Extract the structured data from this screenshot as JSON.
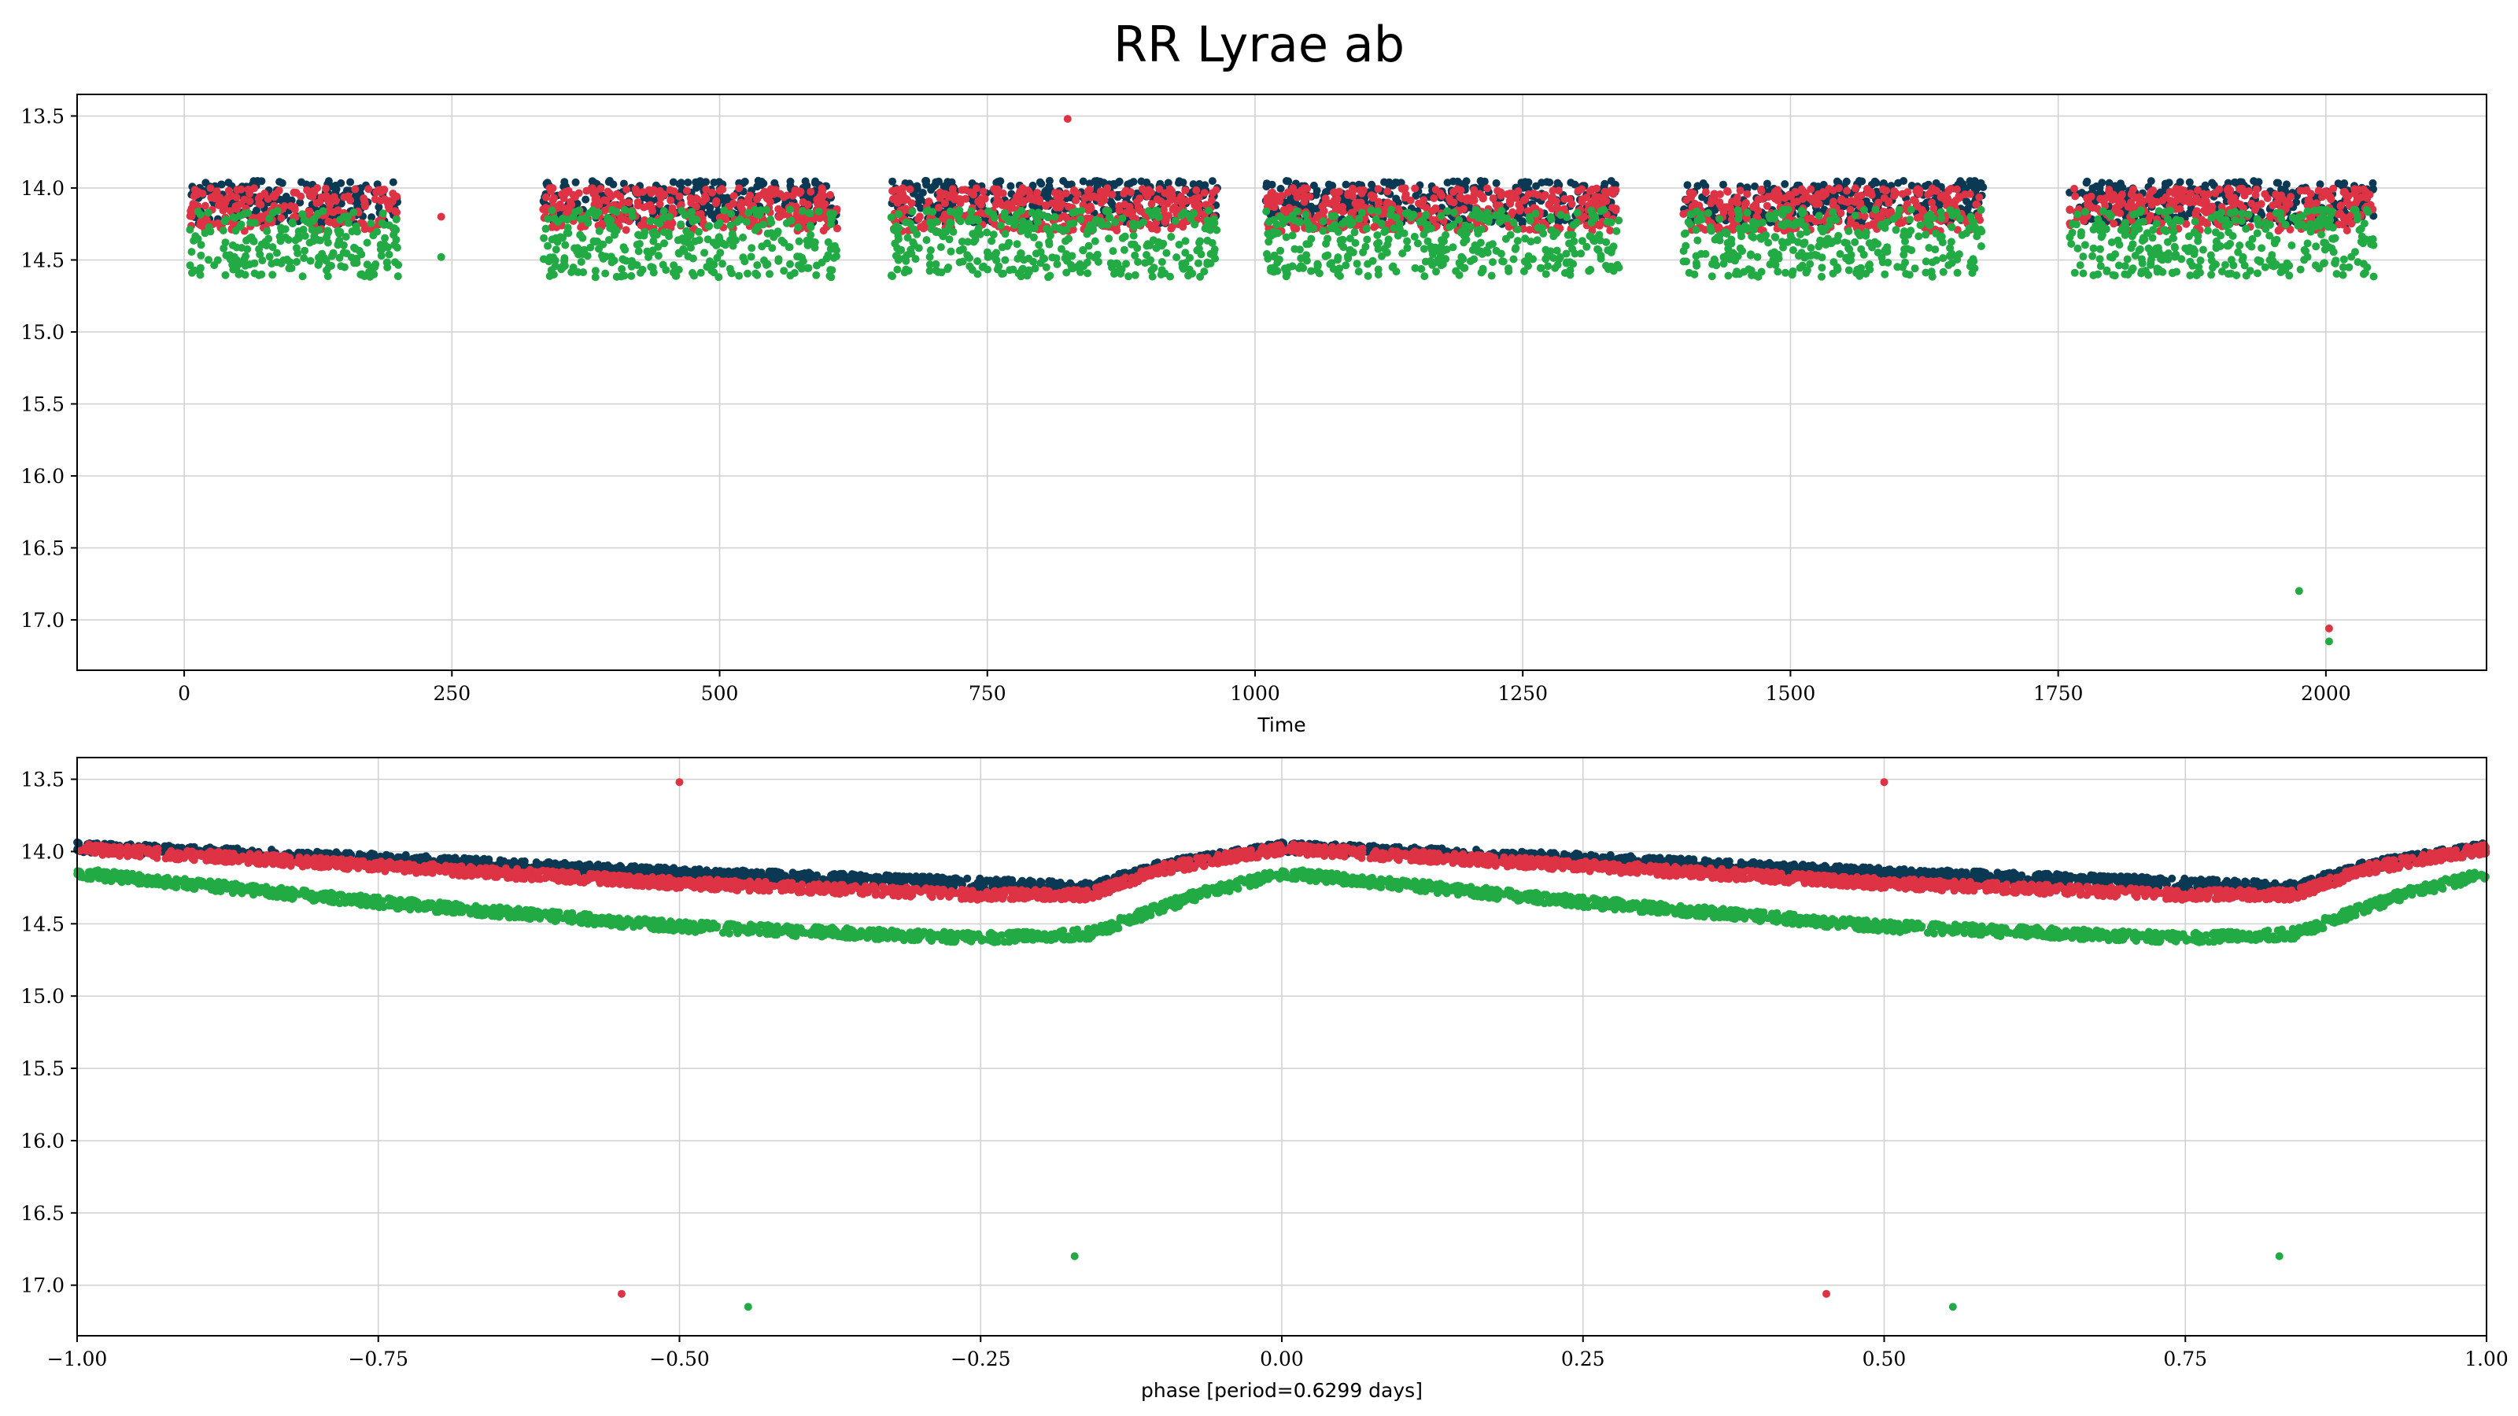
{
  "title": "RR Lyrae ab",
  "colors": {
    "navy": "#0b3954",
    "red": "#dd3344",
    "green": "#22aa44",
    "grid": "#d0d0d0"
  },
  "chart_data": [
    {
      "type": "scatter",
      "title": "RR Lyrae ab",
      "xlabel": "Time",
      "ylabel": "",
      "xlim": [
        -100,
        2150
      ],
      "ylim": [
        17.35,
        13.35
      ],
      "y_inverted": true,
      "grid": true,
      "xticks": [
        0,
        250,
        500,
        750,
        1000,
        1250,
        1500,
        1750,
        2000
      ],
      "xtick_labels": [
        "0",
        "250",
        "500",
        "750",
        "1000",
        "1250",
        "1500",
        "1750",
        "2000"
      ],
      "yticks": [
        13.5,
        14.0,
        14.5,
        15.0,
        15.5,
        16.0,
        16.5,
        17.0
      ],
      "ytick_labels": [
        "13.5",
        "14.0",
        "14.5",
        "15.0",
        "15.5",
        "16.0",
        "16.5",
        "17.0"
      ],
      "season_windows": [
        [
          5,
          200
        ],
        [
          335,
          610
        ],
        [
          660,
          965
        ],
        [
          1010,
          1340
        ],
        [
          1400,
          1680
        ],
        [
          1760,
          2045
        ]
      ],
      "series": [
        {
          "color": "#0b3954",
          "band": [
            13.95,
            14.25
          ]
        },
        {
          "color": "#dd3344",
          "band": [
            14.0,
            14.3
          ]
        },
        {
          "color": "#22aa44",
          "band": [
            14.15,
            14.62
          ]
        }
      ],
      "outliers": [
        {
          "series": 1,
          "x": 825,
          "y": 13.52
        },
        {
          "series": 2,
          "x": 1975,
          "y": 16.8
        },
        {
          "series": 1,
          "x": 2003,
          "y": 17.06
        },
        {
          "series": 2,
          "x": 2003,
          "y": 17.15
        },
        {
          "series": 1,
          "x": 240,
          "y": 14.2
        },
        {
          "series": 2,
          "x": 240,
          "y": 14.48
        }
      ]
    },
    {
      "type": "scatter",
      "xlabel": "phase [period=0.6299 days]",
      "ylabel": "",
      "xlim": [
        -1.0,
        1.0
      ],
      "ylim": [
        17.35,
        13.35
      ],
      "y_inverted": true,
      "grid": true,
      "period_days": 0.6299,
      "xticks": [
        -1.0,
        -0.75,
        -0.5,
        -0.25,
        0.0,
        0.25,
        0.5,
        0.75,
        1.0
      ],
      "xtick_labels": [
        "−1.00",
        "−0.75",
        "−0.50",
        "−0.25",
        "0.00",
        "0.25",
        "0.50",
        "0.75",
        "1.00"
      ],
      "yticks": [
        13.5,
        14.0,
        14.5,
        15.0,
        15.5,
        16.0,
        16.5,
        17.0
      ],
      "ytick_labels": [
        "13.5",
        "14.0",
        "14.5",
        "15.0",
        "15.5",
        "16.0",
        "16.5",
        "17.0"
      ],
      "series": [
        {
          "color": "#0b3954",
          "phase_curve": [
            [
              0.0,
              13.97
            ],
            [
              0.25,
              14.05
            ],
            [
              0.5,
              14.15
            ],
            [
              0.75,
              14.22
            ],
            [
              0.84,
              14.25
            ],
            [
              0.9,
              14.1
            ],
            [
              1.0,
              13.97
            ]
          ]
        },
        {
          "color": "#dd3344",
          "phase_curve": [
            [
              0.0,
              13.98
            ],
            [
              0.25,
              14.1
            ],
            [
              0.5,
              14.22
            ],
            [
              0.75,
              14.3
            ],
            [
              0.84,
              14.3
            ],
            [
              0.9,
              14.12
            ],
            [
              1.0,
              13.98
            ]
          ]
        },
        {
          "color": "#22aa44",
          "phase_curve": [
            [
              0.0,
              14.15
            ],
            [
              0.25,
              14.35
            ],
            [
              0.5,
              14.52
            ],
            [
              0.75,
              14.6
            ],
            [
              0.84,
              14.57
            ],
            [
              0.93,
              14.3
            ],
            [
              1.0,
              14.15
            ]
          ]
        }
      ],
      "outliers": [
        {
          "series": 1,
          "x": -0.5,
          "y": 13.52
        },
        {
          "series": 1,
          "x": 0.5,
          "y": 13.52
        },
        {
          "series": 1,
          "x": -0.548,
          "y": 17.06
        },
        {
          "series": 1,
          "x": 0.452,
          "y": 17.06
        },
        {
          "series": 2,
          "x": -0.443,
          "y": 17.15
        },
        {
          "series": 2,
          "x": 0.557,
          "y": 17.15
        },
        {
          "series": 2,
          "x": -0.172,
          "y": 16.8
        },
        {
          "series": 2,
          "x": 0.828,
          "y": 16.8
        }
      ]
    }
  ]
}
